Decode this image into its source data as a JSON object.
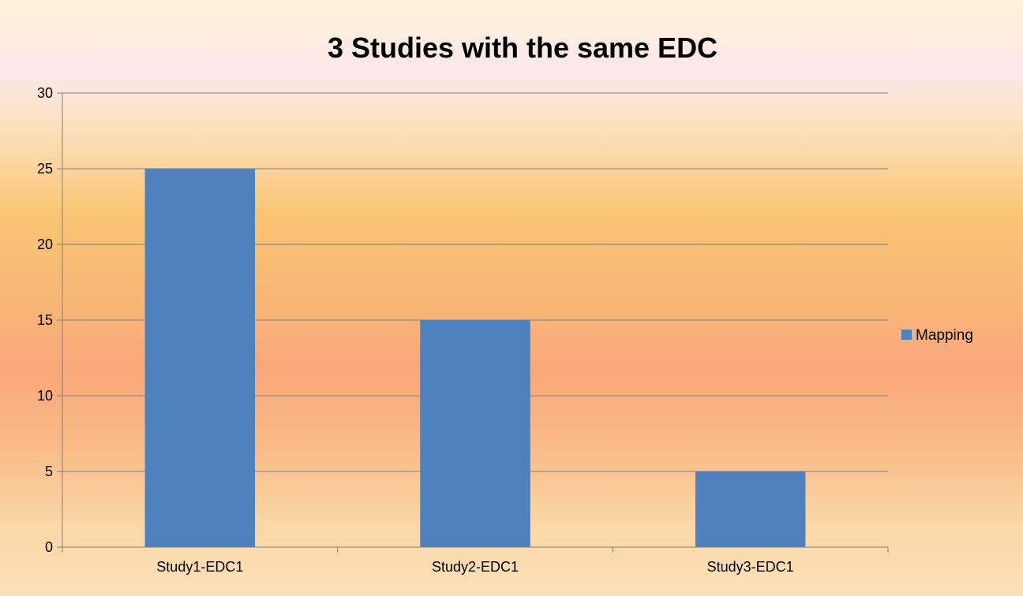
{
  "chart_data": {
    "type": "bar",
    "title": "3 Studies with the same EDC",
    "xlabel": "",
    "ylabel": "",
    "categories": [
      "Study1-EDC1",
      "Study2-EDC1",
      "Study3-EDC1"
    ],
    "series": [
      {
        "name": "Mapping",
        "values": [
          25,
          15,
          5
        ],
        "color": "#4f81bd"
      }
    ],
    "ylim": [
      0,
      30
    ],
    "yticks": [
      "0",
      "5",
      "10",
      "15",
      "20",
      "25",
      "30"
    ],
    "grid": true,
    "legend_position": "right"
  }
}
